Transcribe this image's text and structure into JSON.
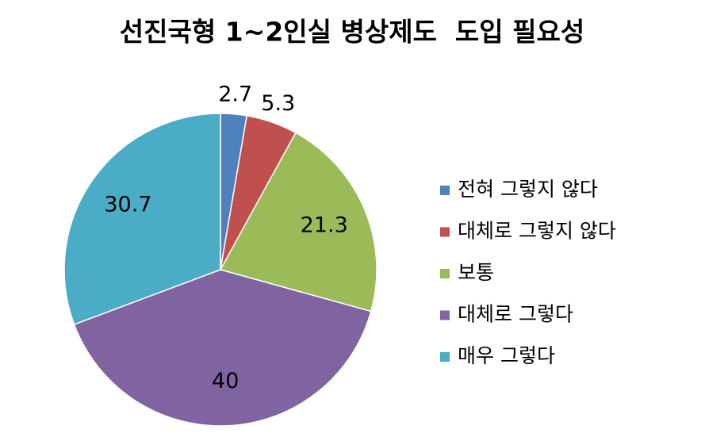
{
  "chart_data": {
    "type": "pie",
    "title": "선진국형 1~2인실 병상제도  도입 필요성",
    "categories": [
      "전혀 그렇지 않다",
      "대체로 그렇지 않다",
      "보통",
      "대체로 그렇다",
      "매우 그렇다"
    ],
    "values": [
      2.7,
      5.3,
      21.3,
      40,
      30.7
    ],
    "colors": [
      "#4f81bd",
      "#c0504d",
      "#9bbb59",
      "#8064a2",
      "#4bacc6"
    ],
    "legend": "right"
  }
}
